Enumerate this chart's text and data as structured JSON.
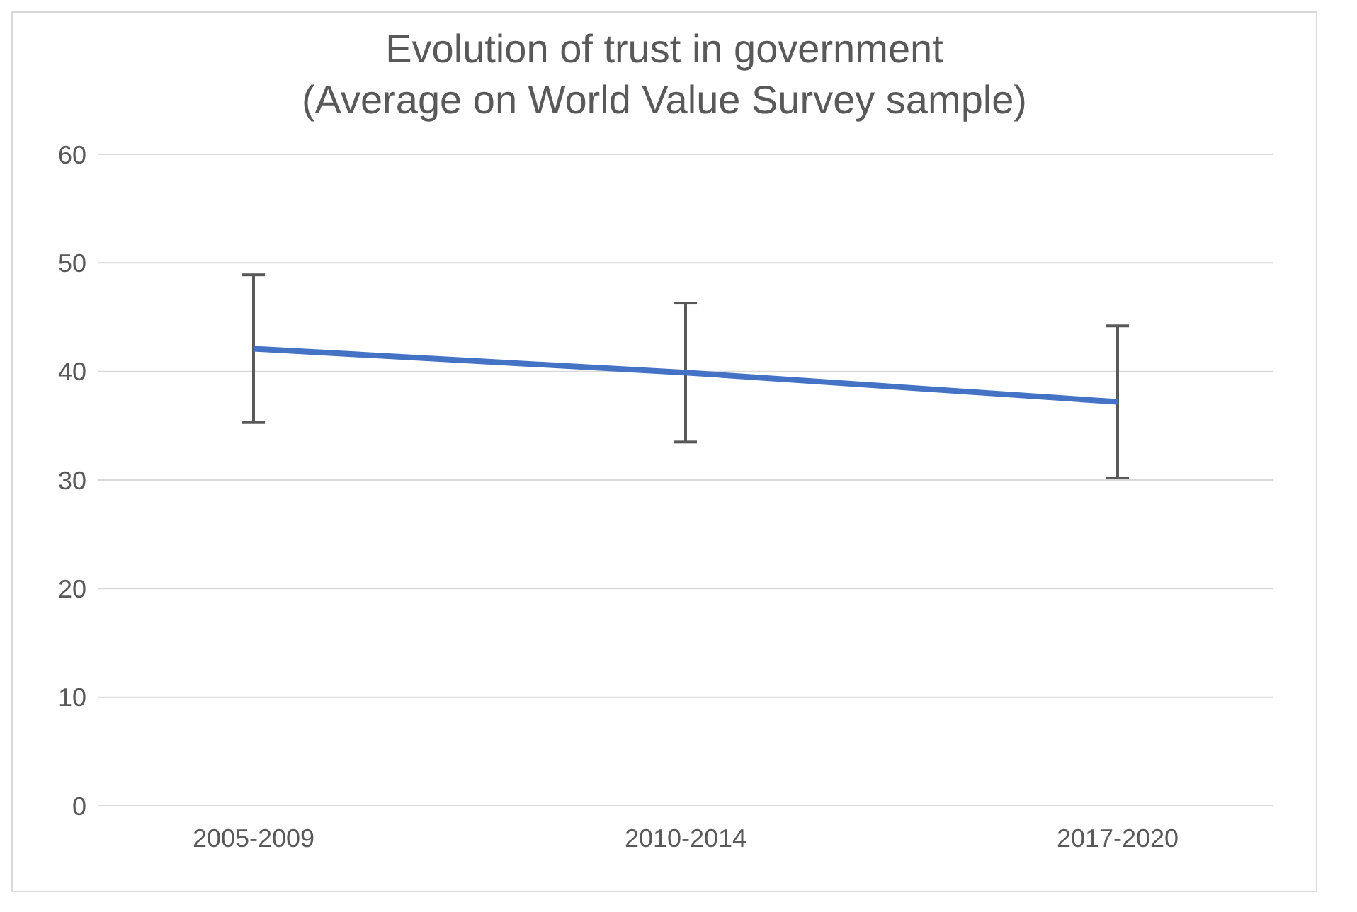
{
  "chart_data": {
    "type": "line",
    "title": "Evolution of trust in government\n(Average on World Value Survey sample)",
    "categories": [
      "2005-2009",
      "2010-2014",
      "2017-2020"
    ],
    "series": [
      {
        "color": "#4472c4",
        "values": [
          42.1,
          39.9,
          37.2
        ],
        "errors": [
          6.8,
          6.4,
          7.0
        ]
      }
    ],
    "ylim": [
      0,
      60
    ],
    "yticks": [
      0,
      10,
      20,
      30,
      40,
      50,
      60
    ],
    "grid": "y",
    "marker": "none",
    "line_style": "solid"
  }
}
